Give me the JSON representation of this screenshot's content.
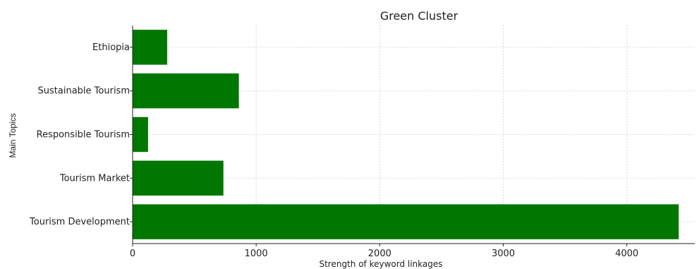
{
  "chart_data": {
    "type": "bar",
    "orientation": "horizontal",
    "title": "Green Cluster",
    "xlabel": "Strength of keyword linkages",
    "ylabel": "Main Topics",
    "categories": [
      "Ethiopia",
      "Sustainable Tourism",
      "Responsible Tourism",
      "Tourism Market",
      "Tourism Development"
    ],
    "values": [
      280,
      860,
      125,
      735,
      4420
    ],
    "xlim": [
      0,
      4550
    ],
    "xticks": [
      0,
      1000,
      2000,
      3000,
      4000
    ],
    "xtick_labels": [
      "0",
      "1000",
      "2000",
      "3000",
      "4000"
    ],
    "grid": true,
    "bar_color": "#007700"
  }
}
